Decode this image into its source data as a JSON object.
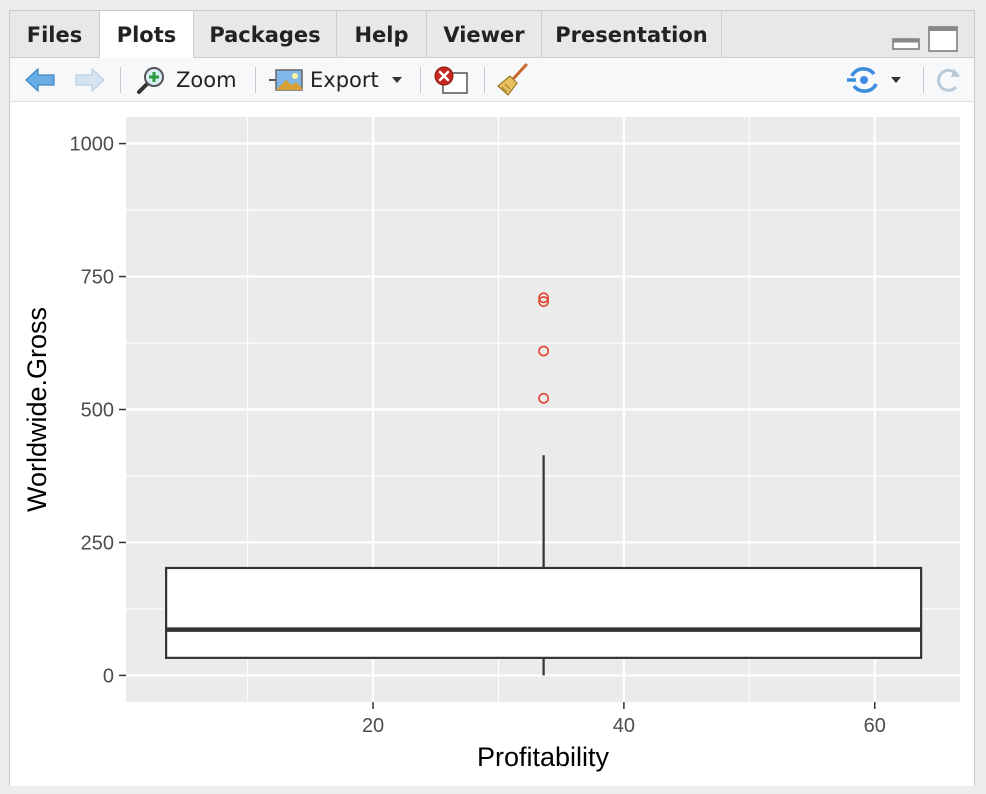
{
  "tabs": [
    {
      "label": "Files",
      "active": false
    },
    {
      "label": "Plots",
      "active": true
    },
    {
      "label": "Packages",
      "active": false
    },
    {
      "label": "Help",
      "active": false
    },
    {
      "label": "Viewer",
      "active": false
    },
    {
      "label": "Presentation",
      "active": false
    }
  ],
  "toolbar": {
    "zoom_label": "Zoom",
    "export_label": "Export",
    "icons": [
      "back-arrow-icon",
      "forward-arrow-icon",
      "zoom-icon",
      "export-image-icon",
      "remove-plot-icon",
      "clear-broom-icon",
      "publish-icon",
      "refresh-icon"
    ]
  },
  "colors": {
    "panel_bg": "#ebebeb",
    "grid": "#ffffff",
    "outlier": "#e0442f",
    "box_line": "#333333",
    "back_arrow": "#5aa0dc"
  },
  "chart_data": {
    "type": "box",
    "xlabel": "Profitability",
    "ylabel": "Worldwide.Gross",
    "x_ticks": [
      "20",
      "40",
      "60"
    ],
    "y_ticks": [
      "0",
      "250",
      "500",
      "750",
      "1000"
    ],
    "xlim": [
      0.3,
      66.8
    ],
    "ylim": [
      -50,
      1050
    ],
    "box": {
      "x_min": 3.5,
      "x_max": 63.7,
      "x_center": 33.6,
      "whisker_low": 0,
      "q1": 33,
      "median": 86,
      "q3": 202,
      "whisker_high": 414
    },
    "outliers": [
      521,
      610,
      703,
      710
    ],
    "grid": true
  }
}
